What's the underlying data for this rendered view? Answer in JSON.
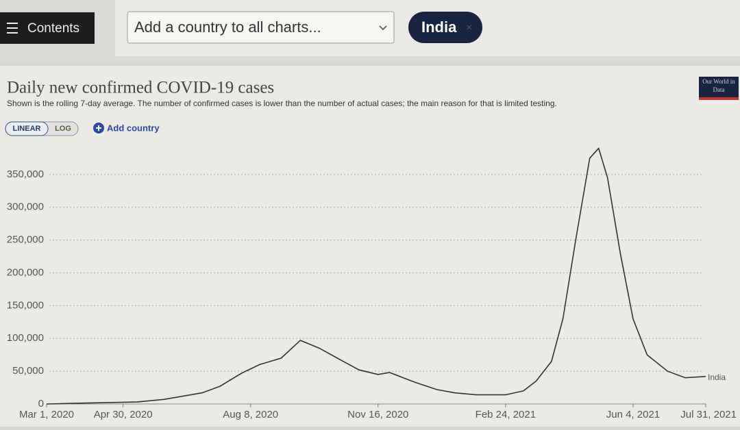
{
  "ui": {
    "contents_button": "Contents",
    "country_select": "Add a country to all charts...",
    "selected_country": "India",
    "remove_icon": "×",
    "scale_linear": "LINEAR",
    "scale_log": "LOG",
    "add_country": "Add country",
    "logo": "Our World in Data"
  },
  "chart_data": {
    "type": "line",
    "title": "Daily new confirmed COVID-19 cases",
    "subtitle": "Shown is the rolling 7-day average. The number of confirmed cases is lower than the number of actual cases; the main reason for that is limited testing.",
    "x": [
      "2020-03-01",
      "2020-04-01",
      "2020-05-11",
      "2020-06-01",
      "2020-07-01",
      "2020-07-15",
      "2020-08-01",
      "2020-08-15",
      "2020-09-01",
      "2020-09-16",
      "2020-10-01",
      "2020-10-15",
      "2020-11-01",
      "2020-11-16",
      "2020-11-25",
      "2020-12-15",
      "2021-01-01",
      "2021-01-15",
      "2021-02-01",
      "2021-02-24",
      "2021-03-10",
      "2021-03-20",
      "2021-04-01",
      "2021-04-10",
      "2021-04-20",
      "2021-05-01",
      "2021-05-08",
      "2021-05-15",
      "2021-05-25",
      "2021-06-04",
      "2021-06-15",
      "2021-07-01",
      "2021-07-15",
      "2021-07-31"
    ],
    "series": [
      {
        "name": "India",
        "color": "#333333",
        "values": [
          0,
          1500,
          3000,
          7000,
          17000,
          27000,
          47000,
          60000,
          70000,
          97000,
          85000,
          70000,
          52000,
          45000,
          48000,
          33000,
          22000,
          17000,
          14000,
          14000,
          20000,
          35000,
          65000,
          130000,
          250000,
          375000,
          390000,
          345000,
          230000,
          130000,
          75000,
          50000,
          40000,
          42000
        ]
      }
    ],
    "xlim": [
      "2020-03-01",
      "2021-07-31"
    ],
    "xticks": [
      {
        "value": "2020-03-01",
        "label": "Mar 1, 2020"
      },
      {
        "value": "2020-04-30",
        "label": "Apr 30, 2020"
      },
      {
        "value": "2020-08-08",
        "label": "Aug 8, 2020"
      },
      {
        "value": "2020-11-16",
        "label": "Nov 16, 2020"
      },
      {
        "value": "2021-02-24",
        "label": "Feb 24, 2021"
      },
      {
        "value": "2021-06-04",
        "label": "Jun 4, 2021"
      },
      {
        "value": "2021-07-31",
        "label": "Jul 31, 2021"
      }
    ],
    "ylim": [
      0,
      400000
    ],
    "yticks": [
      0,
      {
        "value": 50000,
        "label": "50,000"
      },
      {
        "value": 100000,
        "label": "100,000"
      },
      {
        "value": 150000,
        "label": "150,000"
      },
      {
        "value": 200000,
        "label": "200,000"
      },
      {
        "value": 250000,
        "label": "250,000"
      },
      {
        "value": 300000,
        "label": "300,000"
      },
      {
        "value": 350000,
        "label": "350,000"
      }
    ],
    "grid": true
  }
}
